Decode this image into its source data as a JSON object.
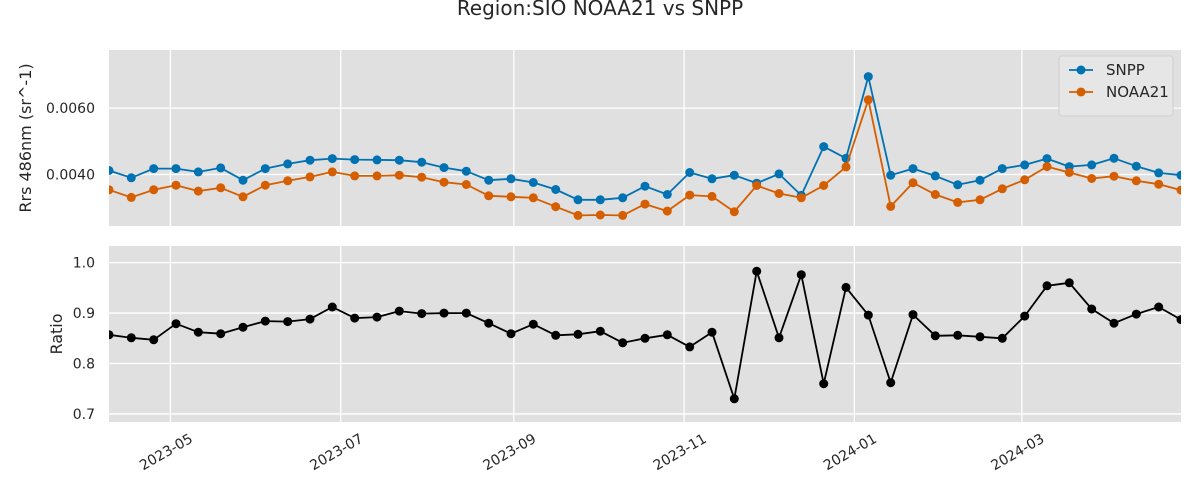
{
  "chart_data": {
    "type": "line",
    "title": "Region:SIO NOAA21 vs SNPP",
    "x": [
      "2023-04-09",
      "2023-04-17",
      "2023-04-25",
      "2023-05-03",
      "2023-05-11",
      "2023-05-19",
      "2023-05-27",
      "2023-06-04",
      "2023-06-12",
      "2023-06-20",
      "2023-06-28",
      "2023-07-06",
      "2023-07-14",
      "2023-07-22",
      "2023-07-30",
      "2023-08-07",
      "2023-08-15",
      "2023-08-23",
      "2023-08-31",
      "2023-09-08",
      "2023-09-16",
      "2023-09-24",
      "2023-10-02",
      "2023-10-10",
      "2023-10-18",
      "2023-10-26",
      "2023-11-03",
      "2023-11-11",
      "2023-11-19",
      "2023-11-27",
      "2023-12-05",
      "2023-12-13",
      "2023-12-21",
      "2023-12-29",
      "2024-01-06",
      "2024-01-14",
      "2024-01-22",
      "2024-01-30",
      "2024-02-07",
      "2024-02-15",
      "2024-02-23",
      "2024-03-02",
      "2024-03-10",
      "2024-03-18",
      "2024-03-26",
      "2024-04-03",
      "2024-04-11",
      "2024-04-19",
      "2024-04-27"
    ],
    "xlim": [
      "2023-04-09",
      "2024-04-27"
    ],
    "xticks": [
      "2023-05",
      "2023-07",
      "2023-09",
      "2023-11",
      "2024-01",
      "2024-03"
    ],
    "grid": true,
    "panels": [
      {
        "ylabel": "Rrs 486nm (sr^-1)",
        "ylim": [
          0.00245,
          0.00775
        ],
        "yticks": [
          0.004,
          0.006
        ],
        "ytick_labels": [
          "0.0040",
          "0.0060"
        ],
        "legend_position": "top-right",
        "series": [
          {
            "name": "SNPP",
            "color": "#0072B2",
            "values": [
              0.00412,
              0.0039,
              0.00418,
              0.00418,
              0.00408,
              0.0042,
              0.00383,
              0.00418,
              0.00432,
              0.00443,
              0.00448,
              0.00445,
              0.00444,
              0.00443,
              0.00437,
              0.00421,
              0.0041,
              0.00383,
              0.00387,
              0.00376,
              0.00355,
              0.00324,
              0.00324,
              0.0033,
              0.00365,
              0.0034,
              0.00406,
              0.00387,
              0.00398,
              0.00374,
              0.00402,
              0.00337,
              0.00484,
              0.00449,
              0.00695,
              0.00398,
              0.00418,
              0.00396,
              0.00369,
              0.00383,
              0.00418,
              0.00429,
              0.00448,
              0.00424,
              0.00429,
              0.00449,
              0.00425,
              0.00405,
              0.00398
            ]
          },
          {
            "name": "NOAA21",
            "color": "#D55E00",
            "values": [
              0.00354,
              0.00331,
              0.00354,
              0.00368,
              0.0035,
              0.0036,
              0.00333,
              0.00368,
              0.00381,
              0.00393,
              0.00408,
              0.00396,
              0.00396,
              0.00398,
              0.00392,
              0.00377,
              0.0037,
              0.00336,
              0.00333,
              0.0033,
              0.00303,
              0.00277,
              0.00278,
              0.00277,
              0.00311,
              0.0029,
              0.00338,
              0.00334,
              0.00288,
              0.00367,
              0.00343,
              0.0033,
              0.00367,
              0.00423,
              0.00625,
              0.00304,
              0.00375,
              0.0034,
              0.00316,
              0.00324,
              0.00357,
              0.00384,
              0.00424,
              0.00406,
              0.00388,
              0.00395,
              0.00381,
              0.00371,
              0.00353
            ]
          }
        ]
      },
      {
        "ylabel": "Ratio",
        "ylim": [
          0.684,
          1.033
        ],
        "yticks": [
          0.7,
          0.8,
          0.9,
          1.0
        ],
        "ytick_labels": [
          "0.7",
          "0.8",
          "0.9",
          "1.0"
        ],
        "series": [
          {
            "name": "",
            "color": "#000000",
            "values": [
              0.857,
              0.851,
              0.847,
              0.879,
              0.862,
              0.859,
              0.872,
              0.884,
              0.883,
              0.888,
              0.912,
              0.89,
              0.892,
              0.904,
              0.899,
              0.9,
              0.9,
              0.88,
              0.859,
              0.878,
              0.856,
              0.858,
              0.864,
              0.841,
              0.85,
              0.857,
              0.833,
              0.862,
              0.73,
              0.983,
              0.851,
              0.976,
              0.76,
              0.951,
              0.896,
              0.762,
              0.897,
              0.855,
              0.856,
              0.853,
              0.85,
              0.894,
              0.954,
              0.96,
              0.908,
              0.88,
              0.898,
              0.912,
              0.887
            ]
          }
        ]
      }
    ]
  }
}
